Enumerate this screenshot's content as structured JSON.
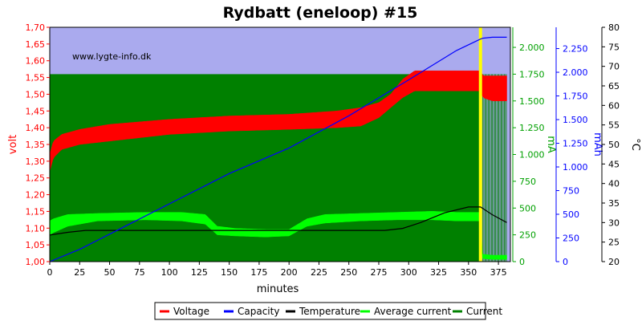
{
  "chart_data": {
    "type": "line",
    "title": "Rydbatt (eneloop) #15",
    "watermark": "www.lygte-info.dk",
    "xlabel": "minutes",
    "x_ticks": [
      0,
      25,
      50,
      75,
      100,
      125,
      150,
      175,
      200,
      225,
      250,
      275,
      300,
      325,
      350,
      375
    ],
    "xlim": [
      0,
      385
    ],
    "axes": {
      "volt": {
        "label": "volt",
        "color": "#ff0000",
        "ylim": [
          1.0,
          1.7
        ],
        "ticks": [
          "1,00",
          "1,05",
          "1,10",
          "1,15",
          "1,20",
          "1,25",
          "1,30",
          "1,35",
          "1,40",
          "1,45",
          "1,50",
          "1,55",
          "1,60",
          "1,65",
          "1,70"
        ]
      },
      "ma": {
        "label": "mA",
        "color": "#00a000",
        "ylim": [
          0,
          2187.5
        ],
        "ticks": [
          "0",
          "250",
          "500",
          "750",
          "1.000",
          "1.250",
          "1.500",
          "1.750",
          "2.000"
        ]
      },
      "mah": {
        "label": "mAh",
        "color": "#0000ff",
        "ylim": [
          0,
          2475
        ],
        "ticks": [
          "0",
          "250",
          "500",
          "750",
          "1.000",
          "1.250",
          "1.500",
          "1.750",
          "2.000",
          "2.250"
        ]
      },
      "temp": {
        "label": "°C",
        "color": "#000000",
        "ylim": [
          20,
          80
        ],
        "ticks": [
          "20",
          "25",
          "30",
          "35",
          "40",
          "45",
          "50",
          "55",
          "60",
          "65",
          "70",
          "75",
          "80"
        ]
      }
    },
    "series": [
      {
        "name": "Voltage",
        "color": "#ff0000",
        "axis": "volt",
        "x": [
          0,
          3,
          10,
          25,
          50,
          100,
          150,
          200,
          240,
          260,
          275,
          285,
          295,
          305,
          360,
          362,
          370,
          382
        ],
        "low": [
          1.27,
          1.31,
          1.335,
          1.35,
          1.36,
          1.38,
          1.39,
          1.395,
          1.4,
          1.405,
          1.43,
          1.46,
          1.49,
          1.51,
          1.51,
          1.49,
          1.48,
          1.48
        ],
        "high": [
          1.32,
          1.36,
          1.38,
          1.395,
          1.41,
          1.425,
          1.435,
          1.44,
          1.45,
          1.46,
          1.475,
          1.5,
          1.545,
          1.57,
          1.57,
          1.555,
          1.555,
          1.555
        ]
      },
      {
        "name": "Capacity",
        "color": "#0000ff",
        "axis": "mah",
        "x": [
          0,
          25,
          50,
          100,
          150,
          200,
          250,
          300,
          340,
          360,
          362,
          370,
          382
        ],
        "values": [
          0,
          130,
          290,
          610,
          930,
          1200,
          1540,
          1920,
          2230,
          2350,
          2360,
          2370,
          2370
        ]
      },
      {
        "name": "Temperature",
        "color": "#000000",
        "axis": "temp",
        "x": [
          0,
          15,
          30,
          60,
          100,
          150,
          200,
          230,
          260,
          280,
          295,
          310,
          330,
          350,
          360,
          370,
          382
        ],
        "values": [
          26.8,
          27.5,
          28,
          28,
          28,
          28,
          28,
          28,
          28,
          28,
          28.5,
          30,
          32.5,
          34,
          34,
          32,
          30
        ]
      },
      {
        "name": "Average current",
        "color": "#00ff00",
        "axis": "ma",
        "x": [
          0,
          3,
          15,
          40,
          80,
          110,
          130,
          140,
          155,
          180,
          200,
          215,
          230,
          260,
          290,
          320,
          340,
          360,
          361,
          370,
          382
        ],
        "low": [
          250,
          270,
          330,
          380,
          390,
          380,
          350,
          250,
          240,
          230,
          240,
          330,
          360,
          380,
          390,
          390,
          380,
          380,
          30,
          20,
          20
        ],
        "high": [
          380,
          400,
          440,
          450,
          460,
          460,
          440,
          330,
          310,
          300,
          300,
          400,
          440,
          450,
          460,
          470,
          460,
          460,
          70,
          60,
          60
        ]
      },
      {
        "name": "Current",
        "color": "#008000",
        "axis": "ma",
        "x": [
          0,
          360,
          361,
          382
        ],
        "values": [
          1750,
          1750,
          0,
          0
        ],
        "pulse_region": [
          361,
          382
        ]
      }
    ],
    "charge_end_marker": {
      "x": 360,
      "color": "#ffff00"
    },
    "legend": {
      "placement": "bottom",
      "entries": [
        {
          "name": "Voltage",
          "color": "#ff0000"
        },
        {
          "name": "Capacity",
          "color": "#0000ff"
        },
        {
          "name": "Temperature",
          "color": "#000000"
        },
        {
          "name": "Average current",
          "color": "#00ff00"
        },
        {
          "name": "Current",
          "color": "#008000"
        }
      ]
    },
    "plot_background": "#aaaaee"
  }
}
